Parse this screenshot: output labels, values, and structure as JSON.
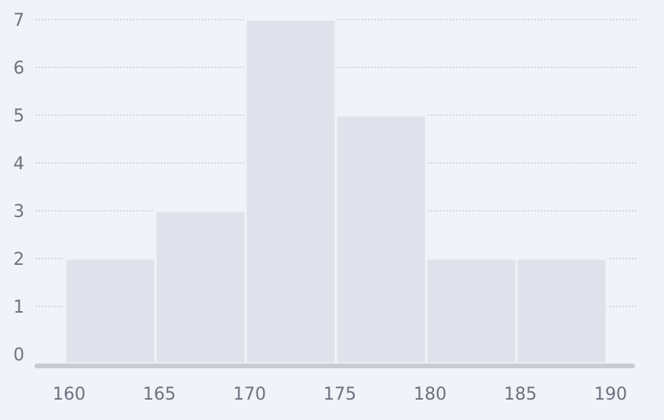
{
  "chart_data": {
    "type": "bar",
    "title": "",
    "xlabel": "",
    "ylabel": "",
    "bins": [
      {
        "start": 160,
        "end": 165,
        "value": 2
      },
      {
        "start": 165,
        "end": 170,
        "value": 3
      },
      {
        "start": 170,
        "end": 175,
        "value": 7
      },
      {
        "start": 175,
        "end": 180,
        "value": 5
      },
      {
        "start": 180,
        "end": 185,
        "value": 2
      },
      {
        "start": 185,
        "end": 190,
        "value": 2
      }
    ],
    "x_ticks": [
      "160",
      "165",
      "170",
      "175",
      "180",
      "185",
      "190"
    ],
    "y_ticks": [
      "0",
      "1",
      "2",
      "3",
      "4",
      "5",
      "6",
      "7"
    ],
    "xlim": [
      160,
      190
    ],
    "ylim": [
      0,
      7
    ],
    "grid": true,
    "colors": {
      "bar": "#dfe2eb",
      "grid": "#b9bcc6",
      "axis": "#c9cbd4",
      "text": "#6f7180",
      "background": "#f0f3f8"
    }
  }
}
